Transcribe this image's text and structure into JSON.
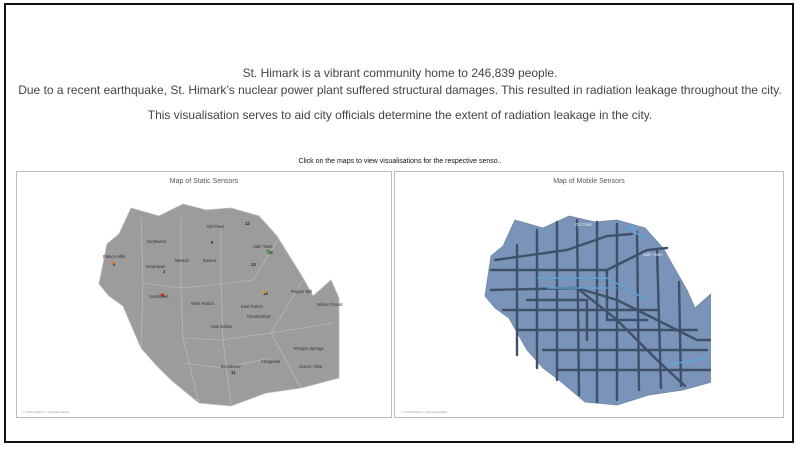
{
  "intro": {
    "line1": "St. Himark is a vibrant community home to 246,839 people.",
    "line2": "Due to a recent earthquake, St. Himark’s nuclear power plant suffered structural damages. This resulted in radiation leakage throughout the city.",
    "line3": "This visualisation serves to aid city officials determine the extent of radiation leakage in the city."
  },
  "hint": "Click on the maps to view visualisations for the respective senso..",
  "static_map": {
    "title": "Map of Static Sensors",
    "credit": "© 2019 Mapbox © OpenStreetMap",
    "neighborhoods": [
      "Old Town",
      "Northwest",
      "Palace Hills",
      "Downtown",
      "Weston",
      "Easton",
      "Safe Town",
      "Southwest",
      "West Parton",
      "East Parton",
      "Pepper Mill",
      "Wilson Forest",
      "Oak Willow",
      "Cheddarford",
      "Terrapin Springs",
      "Broadview",
      "Chapparal",
      "Scenic Vista"
    ],
    "sensor_ids": [
      "12",
      "9",
      "15",
      "13",
      "14",
      "4",
      "6",
      "1",
      "11"
    ],
    "colors": {
      "land": "#9c9c9c",
      "border": "#bdbdbd"
    }
  },
  "mobile_map": {
    "title": "Map of Mobile Sensors",
    "credit": "© 2019 Mapbox © OpenStreetMap",
    "labels": [
      "Old Town",
      "Safe Town"
    ],
    "colors": {
      "land": "#7a93b8",
      "roads": "#3f5069",
      "highlight": "#5aa9e0"
    }
  }
}
